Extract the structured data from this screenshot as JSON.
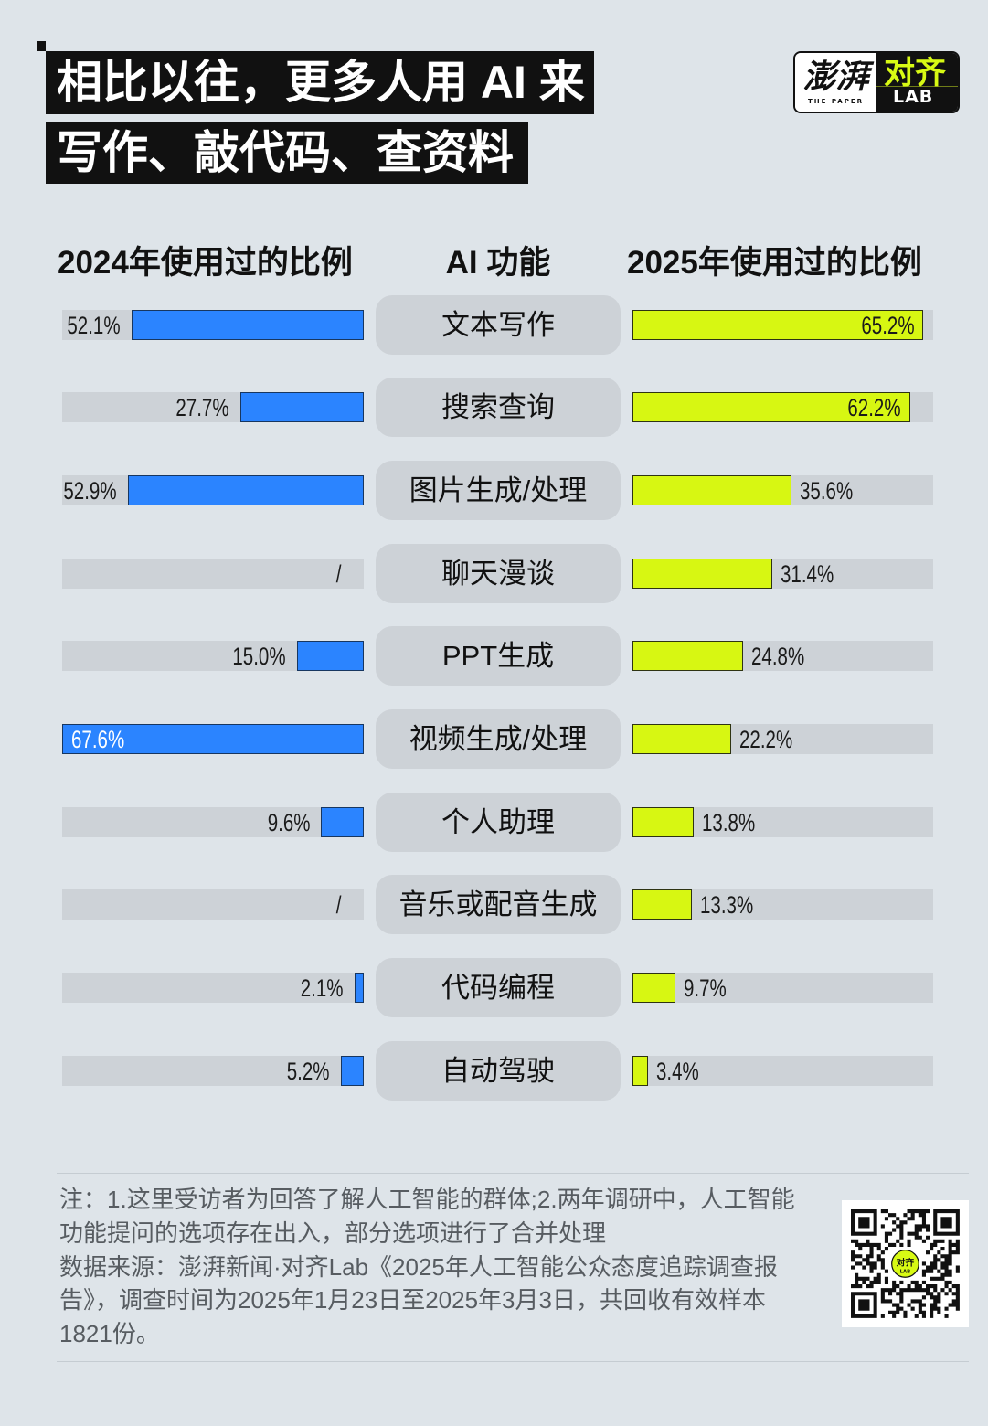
{
  "title": {
    "line1": "相比以往，更多人用 AI 来",
    "line2": "写作、敲代码、查资料"
  },
  "logo": {
    "paper_cn": "澎湃",
    "paper_en": "THE PAPER",
    "lab_cn": "对齐",
    "lab_en": "LAB",
    "accent_color": "#d8fa14"
  },
  "chart_data": {
    "type": "bar",
    "orientation": "horizontal",
    "category_header": "AI 功能",
    "categories": [
      "文本写作",
      "搜索查询",
      "图片生成/处理",
      "聊天漫谈",
      "PPT生成",
      "视频生成/处理",
      "个人助理",
      "音乐或配音生成",
      "代码编程",
      "自动驾驶"
    ],
    "series": [
      {
        "name": "2024年使用过的比例",
        "color": "#2b84ff",
        "values": [
          52.1,
          27.7,
          52.9,
          null,
          15.0,
          67.6,
          9.6,
          null,
          2.1,
          5.2
        ],
        "labels": [
          "52.1%",
          "27.7%",
          "52.9%",
          "/",
          "15.0%",
          "67.6%",
          "9.6%",
          "/",
          "2.1%",
          "5.2%"
        ]
      },
      {
        "name": "2025年使用过的比例",
        "color": "#d7f712",
        "values": [
          65.2,
          62.2,
          35.6,
          31.4,
          24.8,
          22.2,
          13.8,
          13.3,
          9.7,
          3.4
        ],
        "labels": [
          "65.2%",
          "62.2%",
          "35.6%",
          "31.4%",
          "24.8%",
          "22.2%",
          "13.8%",
          "13.3%",
          "9.7%",
          "3.4%"
        ]
      }
    ],
    "grid": false,
    "legend": "none"
  },
  "note": {
    "lines": [
      "注：1.这里受访者为回答了解人工智能的群体;2.两年调研中，人工智能",
      "功能提问的选项存在出入，部分选项进行了合并处理",
      "数据来源：澎湃新闻·对齐Lab《2025年人工智能公众态度追踪调查报",
      "告》，调查时间为2025年1月23日至2025年3月3日，共回收有效样本",
      "1821份。"
    ]
  }
}
